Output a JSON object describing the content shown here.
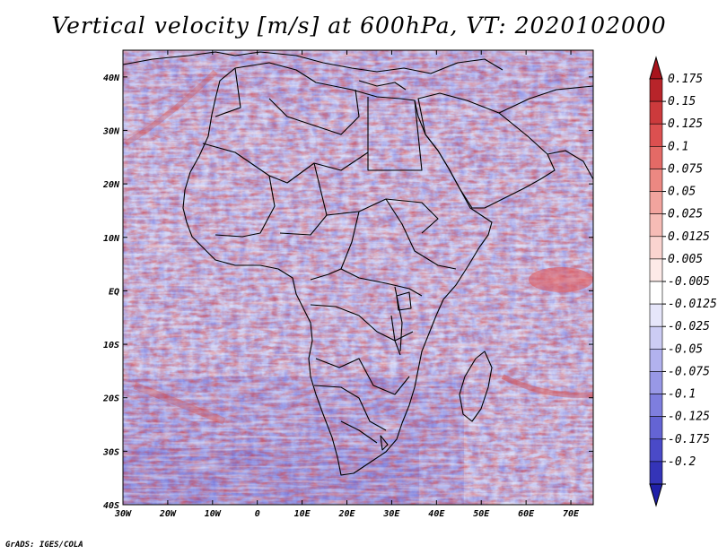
{
  "title": "Vertical velocity [m/s] at 600hPa, VT: 2020102000",
  "credit": "GrADS: IGES/COLA",
  "map": {
    "projection": "latlon",
    "lon_range": [
      -30,
      75
    ],
    "lat_range": [
      -40,
      45
    ],
    "lon_ticks": [
      {
        "lon": -30,
        "label": "30W"
      },
      {
        "lon": -20,
        "label": "20W"
      },
      {
        "lon": -10,
        "label": "10W"
      },
      {
        "lon": 0,
        "label": "0"
      },
      {
        "lon": 10,
        "label": "10E"
      },
      {
        "lon": 20,
        "label": "20E"
      },
      {
        "lon": 30,
        "label": "30E"
      },
      {
        "lon": 40,
        "label": "40E"
      },
      {
        "lon": 50,
        "label": "50E"
      },
      {
        "lon": 60,
        "label": "60E"
      },
      {
        "lon": 70,
        "label": "70E"
      }
    ],
    "lat_ticks": [
      {
        "lat": 40,
        "label": "40N"
      },
      {
        "lat": 30,
        "label": "30N"
      },
      {
        "lat": 20,
        "label": "20N"
      },
      {
        "lat": 10,
        "label": "10N"
      },
      {
        "lat": 0,
        "label": "EQ"
      },
      {
        "lat": -10,
        "label": "10S"
      },
      {
        "lat": -20,
        "label": "20S"
      },
      {
        "lat": -30,
        "label": "30S"
      },
      {
        "lat": -40,
        "label": "40S"
      }
    ]
  },
  "colorbar": {
    "levels": [
      {
        "label": "0.175",
        "color": "#b8242a"
      },
      {
        "label": "0.15",
        "color": "#cc3a3c"
      },
      {
        "label": "0.125",
        "color": "#dc5050"
      },
      {
        "label": "0.1",
        "color": "#e46a66"
      },
      {
        "label": "0.075",
        "color": "#ec8882"
      },
      {
        "label": "0.05",
        "color": "#f2a49e"
      },
      {
        "label": "0.025",
        "color": "#f6bcb6"
      },
      {
        "label": "0.0125",
        "color": "#fad4d0"
      },
      {
        "label": "0.005",
        "color": "#fdeae8"
      },
      {
        "label": "-0.005",
        "color": "#ffffff"
      },
      {
        "label": "-0.0125",
        "color": "#e6e6fa"
      },
      {
        "label": "-0.025",
        "color": "#ccccf4"
      },
      {
        "label": "-0.05",
        "color": "#b2b2ee"
      },
      {
        "label": "-0.075",
        "color": "#9898e6"
      },
      {
        "label": "-0.1",
        "color": "#7e7ede"
      },
      {
        "label": "-0.125",
        "color": "#6464d4"
      },
      {
        "label": "-0.175",
        "color": "#4a4ac8"
      },
      {
        "label": "-0.2",
        "color": "#3434b8"
      }
    ],
    "top_arrow_color": "#a8141c",
    "bottom_arrow_color": "#2020a8"
  }
}
